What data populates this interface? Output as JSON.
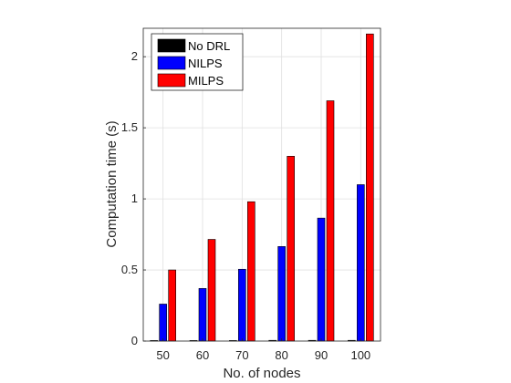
{
  "chart_data": {
    "type": "bar",
    "xlabel": "No. of nodes",
    "ylabel": "Computation time (s)",
    "categories": [
      "50",
      "60",
      "70",
      "80",
      "90",
      "100"
    ],
    "ylim": [
      0,
      2.2
    ],
    "yticks": [
      "0",
      "0.5",
      "1",
      "1.5",
      "2"
    ],
    "ytick_values": [
      0,
      0.5,
      1,
      1.5,
      2
    ],
    "grid": true,
    "legend_position": "top-left",
    "series": [
      {
        "name": "No DRL",
        "color": "#000000",
        "values": [
          0.001,
          0.001,
          0.001,
          0.005,
          0.005,
          0.005
        ]
      },
      {
        "name": "NILPS",
        "color": "#0000ff",
        "values": [
          0.26,
          0.37,
          0.505,
          0.665,
          0.865,
          1.1
        ]
      },
      {
        "name": "MILPS",
        "color": "#ff0000",
        "values": [
          0.5,
          0.715,
          0.98,
          1.3,
          1.69,
          2.16
        ]
      }
    ]
  }
}
